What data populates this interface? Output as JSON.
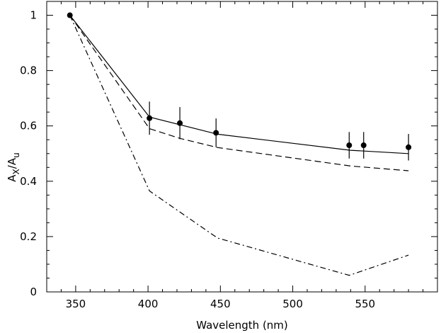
{
  "chart_data": {
    "type": "line",
    "title": "",
    "xlabel": "Wavelength (nm)",
    "ylabel": {
      "numerator_main": "A",
      "numerator_sub": "X",
      "slash": "/",
      "denominator_main": "A",
      "denominator_sub": "u"
    },
    "xlim": [
      330,
      600
    ],
    "ylim": [
      0,
      1.05
    ],
    "x_ticks": [
      350,
      400,
      450,
      500,
      550
    ],
    "y_ticks": [
      0,
      0.2,
      0.4,
      0.6,
      0.8,
      1
    ],
    "x_tick_labels": [
      "350",
      "400",
      "450",
      "500",
      "550"
    ],
    "y_tick_labels": [
      "0",
      "0.2",
      "0.4",
      "0.6",
      "0.8",
      "1"
    ],
    "grid": false,
    "series": [
      {
        "style": "solid",
        "x": [
          346,
          401,
          448,
          540,
          580
        ],
        "y": [
          1.0,
          0.632,
          0.57,
          0.512,
          0.5
        ]
      },
      {
        "style": "dashed",
        "x": [
          346,
          401,
          422,
          448,
          540,
          580
        ],
        "y": [
          1.0,
          0.59,
          0.555,
          0.522,
          0.455,
          0.438
        ]
      },
      {
        "style": "dashdot",
        "x": [
          346,
          401,
          448,
          539,
          580
        ],
        "y": [
          1.0,
          0.365,
          0.195,
          0.06,
          0.133
        ]
      }
    ],
    "points": {
      "x": [
        346,
        401,
        422,
        447,
        539,
        549,
        580
      ],
      "y": [
        1.0,
        0.628,
        0.61,
        0.575,
        0.53,
        0.53,
        0.523
      ],
      "err": [
        0,
        0.06,
        0.058,
        0.052,
        0.048,
        0.048,
        0.048
      ]
    }
  }
}
